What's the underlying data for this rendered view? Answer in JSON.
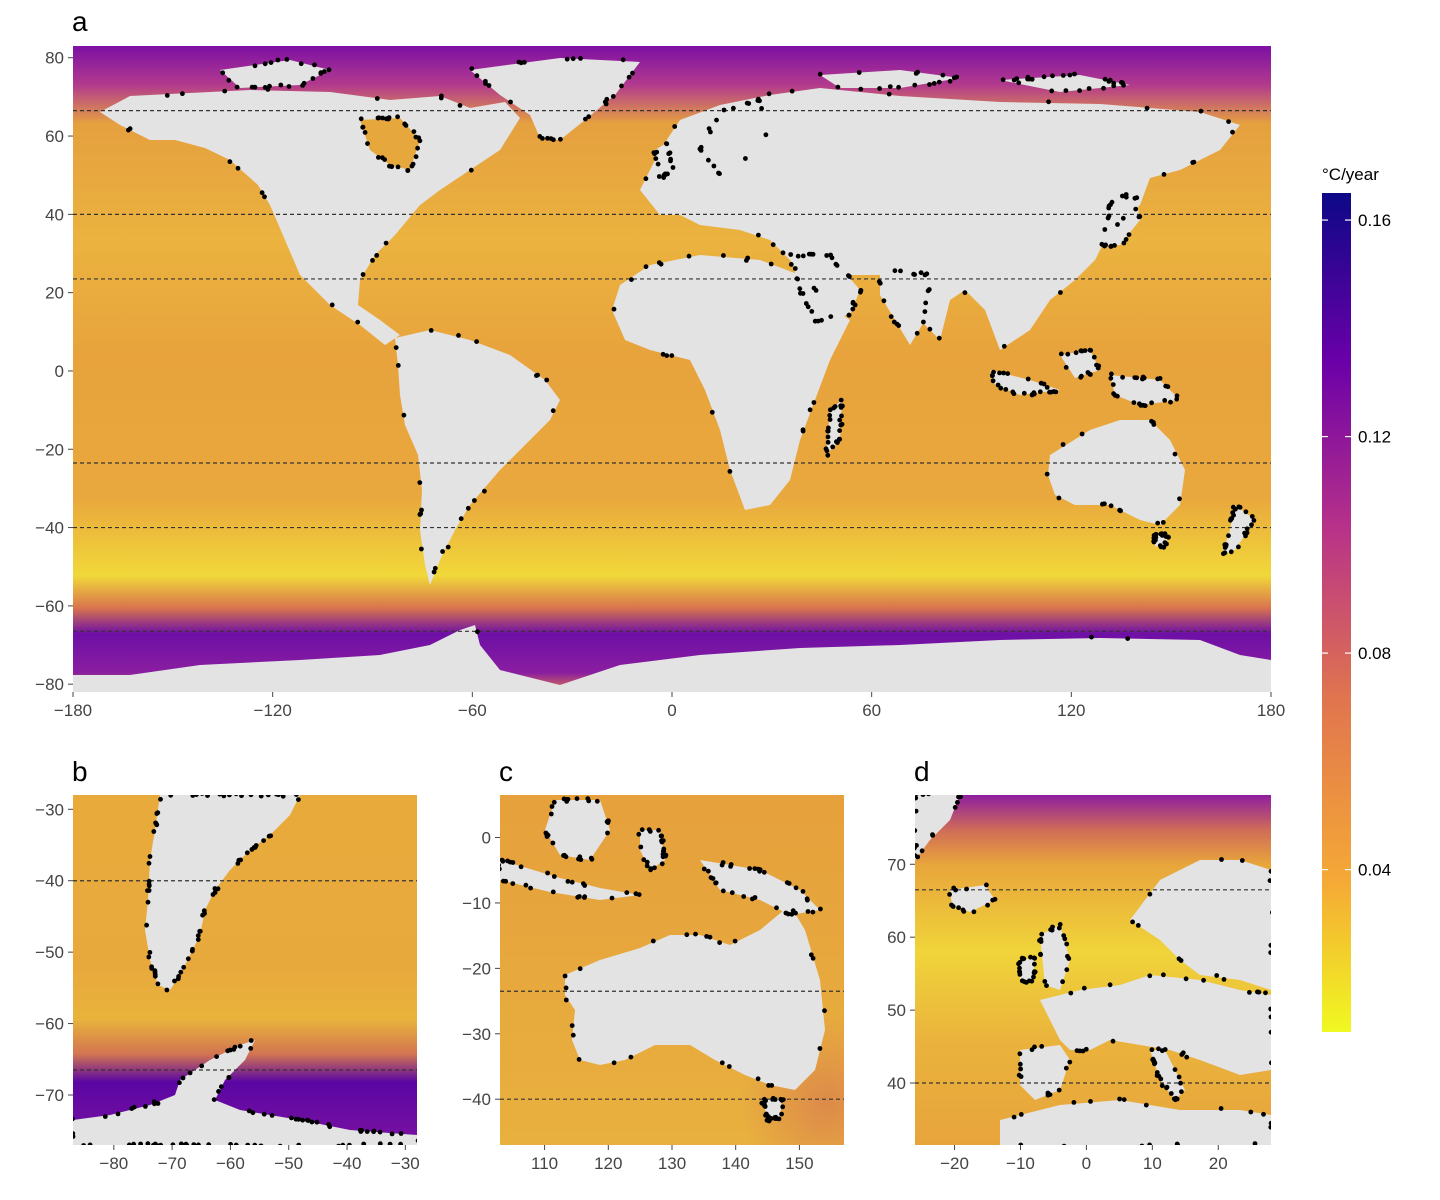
{
  "figure": {
    "colorbar": {
      "title": "°C/year",
      "ticks": [
        "0.16",
        "0.12",
        "0.08",
        "0.04"
      ],
      "tick_values": [
        0.16,
        0.12,
        0.08,
        0.04
      ],
      "range": [
        0.01,
        0.165
      ],
      "colors": [
        "#f0f921",
        "#f5a936",
        "#e0744f",
        "#b83289",
        "#6a00a8",
        "#0d0887"
      ]
    },
    "colors": {
      "land": "#e3e3e3",
      "ocean_warm_low": "#e9b740",
      "ocean_mid": "#e8a33c",
      "polar_high": "#7d10a4",
      "site_marker": "#000000",
      "reference_line": "#333333"
    },
    "panels": [
      {
        "label": "a",
        "x_range": [
          -180,
          180
        ],
        "y_range": [
          -82,
          83
        ],
        "x_ticks": [
          "−180",
          "−120",
          "−60",
          "0",
          "60",
          "120",
          "180"
        ],
        "x_tick_values": [
          -180,
          -120,
          -60,
          0,
          60,
          120,
          180
        ],
        "y_ticks": [
          "80",
          "60",
          "40",
          "20",
          "0",
          "−20",
          "−40",
          "−60",
          "−80"
        ],
        "y_tick_values": [
          80,
          60,
          40,
          20,
          0,
          -20,
          -40,
          -60,
          -80
        ],
        "reference_latitudes": [
          66.5,
          40,
          23.5,
          -23.5,
          -40,
          -66.5
        ]
      },
      {
        "label": "b",
        "x_range": [
          -87,
          -28
        ],
        "y_range": [
          -77,
          -28
        ],
        "x_ticks": [
          "−80",
          "−70",
          "−60",
          "−50",
          "−40",
          "−30"
        ],
        "x_tick_values": [
          -80,
          -70,
          -60,
          -50,
          -40,
          -30
        ],
        "y_ticks": [
          "−30",
          "−40",
          "−50",
          "−60",
          "−70"
        ],
        "y_tick_values": [
          -30,
          -40,
          -50,
          -60,
          -70
        ],
        "reference_latitudes": [
          -40,
          -66.5
        ]
      },
      {
        "label": "c",
        "x_range": [
          103,
          157
        ],
        "y_range": [
          -47,
          6.5
        ],
        "x_ticks": [
          "110",
          "120",
          "130",
          "140",
          "150"
        ],
        "x_tick_values": [
          110,
          120,
          130,
          140,
          150
        ],
        "y_ticks": [
          "0",
          "−10",
          "−20",
          "−30",
          "−40"
        ],
        "y_tick_values": [
          0,
          -10,
          -20,
          -30,
          -40
        ],
        "reference_latitudes": [
          -23.5,
          -40
        ]
      },
      {
        "label": "d",
        "x_range": [
          -26,
          28
        ],
        "y_range": [
          31.5,
          79.5
        ],
        "x_ticks": [
          "−20",
          "−10",
          "0",
          "10",
          "20"
        ],
        "x_tick_values": [
          -20,
          -10,
          0,
          10,
          20
        ],
        "y_ticks": [
          "70",
          "60",
          "50",
          "40"
        ],
        "y_tick_values": [
          70,
          60,
          50,
          40
        ],
        "reference_latitudes": [
          66.5,
          40
        ]
      }
    ]
  }
}
